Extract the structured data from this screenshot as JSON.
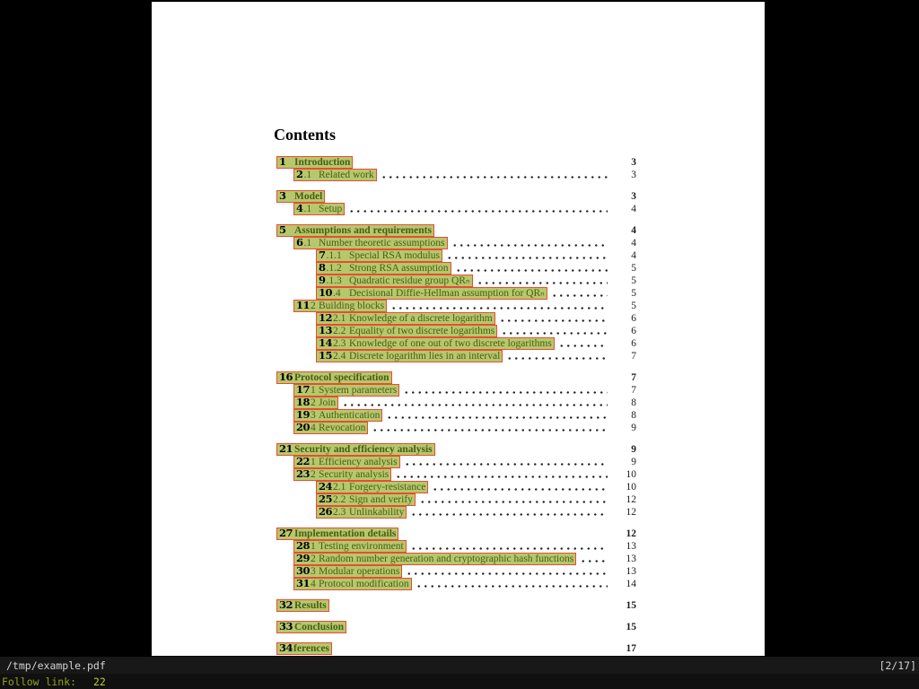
{
  "viewer": {
    "file_path": "/tmp/example.pdf",
    "page_indicator": "[2/17]",
    "prompt_label": "Follow link:",
    "prompt_value": "22",
    "colors": {
      "hint_background": "#b7c76c",
      "hint_border": "#ea4c33",
      "link_text": "#455f16",
      "prompt_label_color": "#93a11c",
      "prompt_value_color": "#bccf22",
      "page_background": "#ffffff",
      "app_background": "#000000"
    }
  },
  "document": {
    "heading": "Contents",
    "toc_groups": [
      {
        "rows": [
          {
            "hint": "1",
            "rest": "",
            "title": "Introduction",
            "page": "3",
            "level": 1,
            "bold": true,
            "dots": false
          },
          {
            "hint": "2",
            "rest": ".1",
            "title": "Related work",
            "page": "3",
            "level": 2,
            "bold": false,
            "dots": true
          }
        ]
      },
      {
        "rows": [
          {
            "hint": "3",
            "rest": "",
            "title": "Model",
            "page": "3",
            "level": 1,
            "bold": true,
            "dots": false
          },
          {
            "hint": "4",
            "rest": ".1",
            "title": "Setup",
            "page": "4",
            "level": 2,
            "bold": false,
            "dots": true
          }
        ]
      },
      {
        "rows": [
          {
            "hint": "5",
            "rest": "",
            "title": "Assumptions and requirements",
            "page": "4",
            "level": 1,
            "bold": true,
            "dots": false
          },
          {
            "hint": "6",
            "rest": ".1",
            "title": "Number theoretic assumptions",
            "page": "4",
            "level": 2,
            "bold": false,
            "dots": true
          },
          {
            "hint": "7",
            "rest": ".1.1",
            "title": "Special RSA modulus",
            "page": "4",
            "level": 3,
            "bold": false,
            "dots": true
          },
          {
            "hint": "8",
            "rest": ".1.2",
            "title": "Strong RSA assumption",
            "page": "5",
            "level": 3,
            "bold": false,
            "dots": true
          },
          {
            "hint": "9",
            "rest": ".1.3",
            "title": "Quadratic residue group QRₙ",
            "page": "5",
            "level": 3,
            "bold": false,
            "dots": true
          },
          {
            "hint": "10",
            "rest": ".4",
            "title": "Decisional Diffie-Hellman assumption for QRₙ",
            "page": "5",
            "level": 3,
            "bold": false,
            "dots": true
          },
          {
            "hint": "11",
            "rest": "2",
            "title": "Building blocks",
            "page": "5",
            "level": 2,
            "bold": false,
            "dots": true
          },
          {
            "hint": "12",
            "rest": "2.1",
            "title": "Knowledge of a discrete logarithm",
            "page": "6",
            "level": 3,
            "bold": false,
            "dots": true
          },
          {
            "hint": "13",
            "rest": "2.2",
            "title": "Equality of two discrete logarithms",
            "page": "6",
            "level": 3,
            "bold": false,
            "dots": true
          },
          {
            "hint": "14",
            "rest": "2.3",
            "title": "Knowledge of one out of two discrete logarithms",
            "page": "6",
            "level": 3,
            "bold": false,
            "dots": true
          },
          {
            "hint": "15",
            "rest": "2.4",
            "title": "Discrete logarithm lies in an interval",
            "page": "7",
            "level": 3,
            "bold": false,
            "dots": true
          }
        ]
      },
      {
        "rows": [
          {
            "hint": "16",
            "rest": "",
            "title": "Protocol specification",
            "page": "7",
            "level": 1,
            "bold": true,
            "dots": false
          },
          {
            "hint": "17",
            "rest": "1",
            "title": "System parameters",
            "page": "7",
            "level": 2,
            "bold": false,
            "dots": true
          },
          {
            "hint": "18",
            "rest": "2",
            "title": "Join",
            "page": "8",
            "level": 2,
            "bold": false,
            "dots": true
          },
          {
            "hint": "19",
            "rest": "3",
            "title": "Authentication",
            "page": "8",
            "level": 2,
            "bold": false,
            "dots": true
          },
          {
            "hint": "20",
            "rest": "4",
            "title": "Revocation",
            "page": "9",
            "level": 2,
            "bold": false,
            "dots": true
          }
        ]
      },
      {
        "rows": [
          {
            "hint": "21",
            "rest": "",
            "title": "Security and efficiency analysis",
            "page": "9",
            "level": 1,
            "bold": true,
            "dots": false
          },
          {
            "hint": "22",
            "rest": "1",
            "title": "Efficiency analysis",
            "page": "9",
            "level": 2,
            "bold": false,
            "dots": true
          },
          {
            "hint": "23",
            "rest": "2",
            "title": "Security analysis",
            "page": "10",
            "level": 2,
            "bold": false,
            "dots": true
          },
          {
            "hint": "24",
            "rest": "2.1",
            "title": "Forgery-resistance",
            "page": "10",
            "level": 3,
            "bold": false,
            "dots": true
          },
          {
            "hint": "25",
            "rest": "2.2",
            "title": "Sign and verify",
            "page": "12",
            "level": 3,
            "bold": false,
            "dots": true
          },
          {
            "hint": "26",
            "rest": "2.3",
            "title": "Unlinkability",
            "page": "12",
            "level": 3,
            "bold": false,
            "dots": true
          }
        ]
      },
      {
        "rows": [
          {
            "hint": "27",
            "rest": "",
            "title": "Implementation details",
            "page": "12",
            "level": 1,
            "bold": true,
            "dots": false
          },
          {
            "hint": "28",
            "rest": "1",
            "title": "Testing environment",
            "page": "13",
            "level": 2,
            "bold": false,
            "dots": true
          },
          {
            "hint": "29",
            "rest": "2",
            "title": "Random number generation and cryptographic hash functions",
            "page": "13",
            "level": 2,
            "bold": false,
            "dots": true
          },
          {
            "hint": "30",
            "rest": "3",
            "title": "Modular operations",
            "page": "13",
            "level": 2,
            "bold": false,
            "dots": true
          },
          {
            "hint": "31",
            "rest": "4",
            "title": "Protocol modification",
            "page": "14",
            "level": 2,
            "bold": false,
            "dots": true
          }
        ]
      },
      {
        "rows": [
          {
            "hint": "32",
            "rest": "",
            "title": "Results",
            "page": "15",
            "level": 1,
            "bold": true,
            "dots": false
          }
        ]
      },
      {
        "rows": [
          {
            "hint": "33",
            "rest": "",
            "title": "Conclusion",
            "page": "15",
            "level": 1,
            "bold": true,
            "dots": false
          }
        ]
      },
      {
        "rows": [
          {
            "hint": "34",
            "rest": "",
            "title": "ferences",
            "page": "17",
            "level": 1,
            "bold": true,
            "dots": false,
            "tight": true
          }
        ]
      }
    ]
  }
}
